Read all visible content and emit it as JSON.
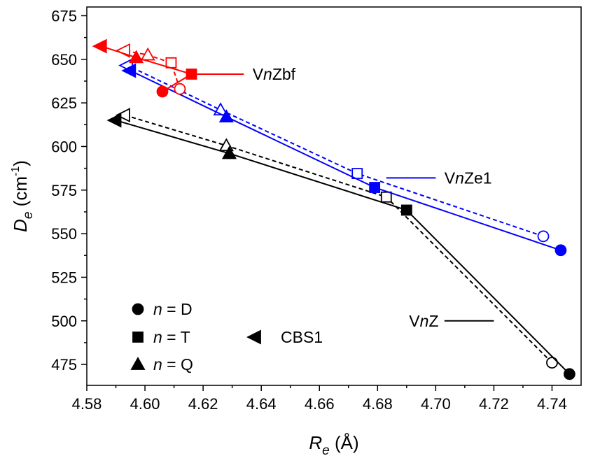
{
  "chart_data": {
    "type": "line",
    "title": "",
    "xlabel": {
      "sym": "R",
      "sub": "e",
      "unit": " (Å)"
    },
    "ylabel": {
      "sym": "D",
      "sub": "e",
      "unit_pre": " (cm",
      "unit_sup": "-1",
      "unit_post": ")"
    },
    "xlim": [
      4.58,
      4.75
    ],
    "ylim": [
      463,
      680
    ],
    "xticks": [
      "4.58",
      "4.60",
      "4.62",
      "4.64",
      "4.66",
      "4.68",
      "4.70",
      "4.72",
      "4.74"
    ],
    "yticks": [
      "475",
      "500",
      "525",
      "550",
      "575",
      "600",
      "625",
      "650",
      "675"
    ],
    "colors": {
      "black": "#000000",
      "blue": "#0000ff",
      "red": "#ff0000"
    },
    "series": [
      {
        "name": "VnZ",
        "color": "#000000",
        "dash": false,
        "fill": true,
        "points": [
          {
            "n": "D",
            "x": 4.746,
            "y": 469.5
          },
          {
            "n": "T",
            "x": 4.69,
            "y": 563.5
          },
          {
            "n": "Q",
            "x": 4.629,
            "y": 596
          },
          {
            "n": "CBS1",
            "x": 4.59,
            "y": 615
          }
        ]
      },
      {
        "name": "VnZ",
        "color": "#000000",
        "dash": true,
        "fill": false,
        "points": [
          {
            "n": "D",
            "x": 4.74,
            "y": 476
          },
          {
            "n": "T",
            "x": 4.683,
            "y": 571
          },
          {
            "n": "Q",
            "x": 4.628,
            "y": 600.5
          },
          {
            "n": "CBS1",
            "x": 4.593,
            "y": 618
          }
        ]
      },
      {
        "name": "VnZe1",
        "color": "#0000ff",
        "dash": false,
        "fill": true,
        "points": [
          {
            "n": "D",
            "x": 4.743,
            "y": 540.5
          },
          {
            "n": "T",
            "x": 4.679,
            "y": 576.5
          },
          {
            "n": "Q",
            "x": 4.628,
            "y": 617
          },
          {
            "n": "CBS1",
            "x": 4.595,
            "y": 643.5
          }
        ]
      },
      {
        "name": "VnZe1",
        "color": "#0000ff",
        "dash": true,
        "fill": false,
        "points": [
          {
            "n": "D",
            "x": 4.737,
            "y": 548.5
          },
          {
            "n": "T",
            "x": 4.673,
            "y": 584.5
          },
          {
            "n": "Q",
            "x": 4.626,
            "y": 621
          },
          {
            "n": "CBS1",
            "x": 4.594,
            "y": 646.5
          }
        ]
      },
      {
        "name": "VnZbf",
        "color": "#ff0000",
        "dash": false,
        "fill": true,
        "points": [
          {
            "n": "D",
            "x": 4.606,
            "y": 631.5
          },
          {
            "n": "T",
            "x": 4.616,
            "y": 641.5
          },
          {
            "n": "Q",
            "x": 4.597,
            "y": 651
          },
          {
            "n": "CBS1",
            "x": 4.585,
            "y": 657.5
          }
        ]
      },
      {
        "name": "VnZbf",
        "color": "#ff0000",
        "dash": true,
        "fill": false,
        "points": [
          {
            "n": "D",
            "x": 4.612,
            "y": 633
          },
          {
            "n": "T",
            "x": 4.609,
            "y": 648
          },
          {
            "n": "Q",
            "x": 4.601,
            "y": 652.5
          },
          {
            "n": "CBS1",
            "x": 4.593,
            "y": 655
          }
        ]
      }
    ],
    "annotations": [
      {
        "prefix": "V",
        "n": "n",
        "suffix": "Zbf",
        "line_x": [
          4.617,
          4.634
        ],
        "line_y": 641.5,
        "text_x": 4.637,
        "text_y": 641.5,
        "color": "#ff0000"
      },
      {
        "prefix": "V",
        "n": "n",
        "suffix": "Ze1",
        "line_x": [
          4.683,
          4.7
        ],
        "line_y": 582,
        "text_x": 4.703,
        "text_y": 582,
        "color": "#0000ff"
      },
      {
        "prefix": "V",
        "n": "n",
        "suffix": "Z",
        "line_x": [
          4.703,
          4.72
        ],
        "line_y": 500,
        "text_x": 4.701,
        "text_y": 500,
        "color": "#000000",
        "anchor": "end"
      }
    ],
    "legend": {
      "position": "bottom-left",
      "items": [
        {
          "shape": "circle",
          "sym": "n",
          "text": " = D"
        },
        {
          "shape": "square",
          "sym": "n",
          "text": " = T"
        },
        {
          "shape": "triangle",
          "sym": "n",
          "text": " = Q"
        },
        {
          "shape": "left-triangle",
          "sym": "",
          "text": "CBS1"
        }
      ]
    }
  }
}
